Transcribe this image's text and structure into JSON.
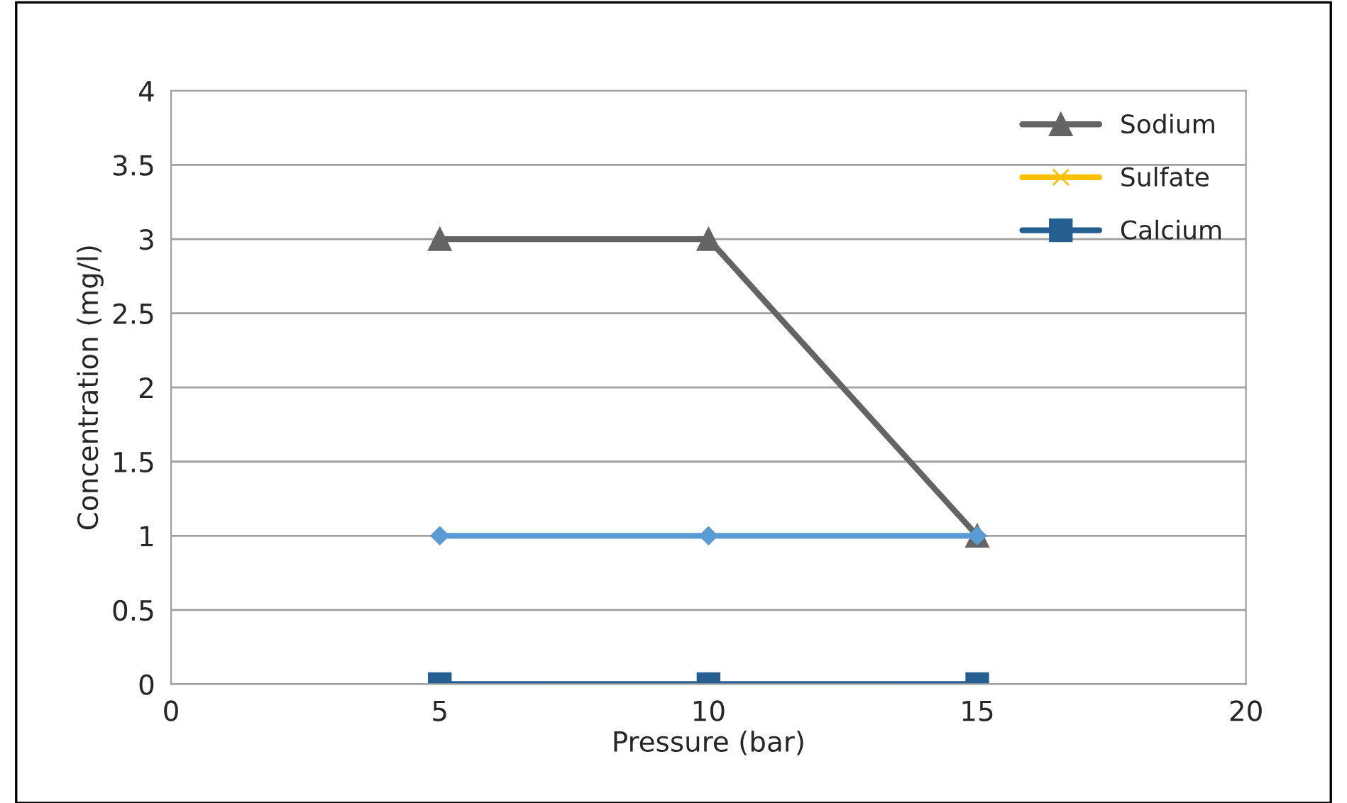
{
  "chart_data": {
    "type": "line",
    "xlabel": "Pressure (bar)",
    "ylabel": "Concentration (mg/l)",
    "xlim": [
      0,
      20
    ],
    "xticks": [
      0,
      5,
      10,
      15,
      20
    ],
    "ylim": [
      0,
      4
    ],
    "yticks": [
      0,
      0.5,
      1,
      1.5,
      2,
      2.5,
      3,
      3.5,
      4
    ],
    "grid": "y",
    "legend": "top right",
    "x": [
      5,
      10,
      15
    ],
    "series": [
      {
        "name": "Sodium",
        "color": "#646464",
        "marker": "triangle",
        "values": [
          3,
          3,
          1
        ]
      },
      {
        "name": "Sulfate",
        "color": "#ffc000",
        "marker": "cross",
        "values": [
          null,
          null,
          null
        ]
      },
      {
        "name": "Calcium",
        "color": "#255e91",
        "marker": "square",
        "values": [
          0,
          0,
          0
        ]
      },
      {
        "color": "#5b9bd5",
        "marker": "diamond",
        "values": [
          1,
          1,
          1
        ]
      }
    ]
  }
}
